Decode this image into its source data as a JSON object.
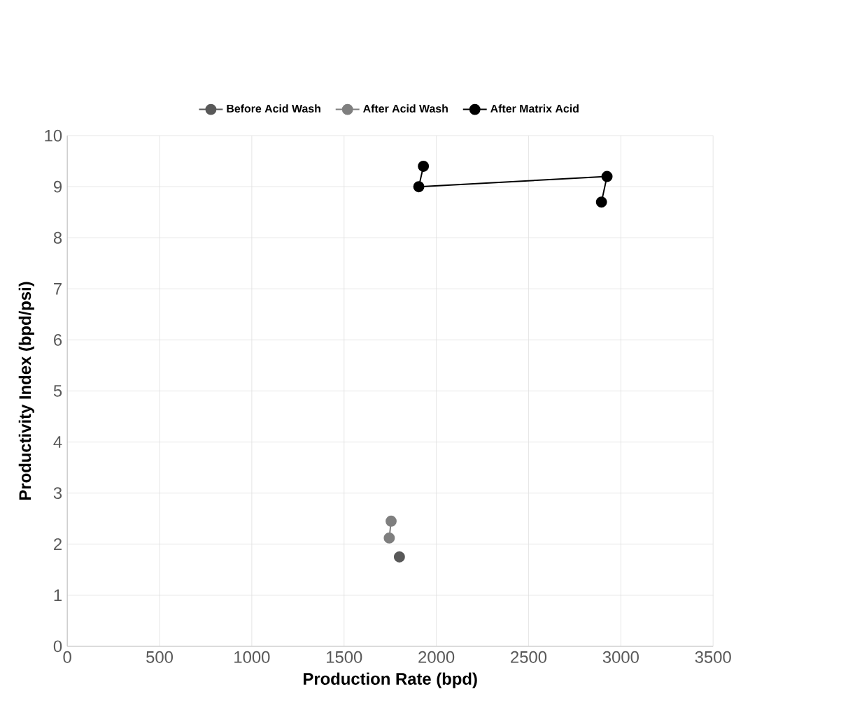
{
  "chart_data": {
    "type": "line",
    "xlabel": "Production Rate (bpd)",
    "ylabel": "Productivity Index (bpd/psi)",
    "xlim": [
      0,
      3500
    ],
    "xticks": [
      0,
      500,
      1000,
      1500,
      2000,
      2500,
      3000,
      3500
    ],
    "ylim": [
      0,
      10
    ],
    "yticks": [
      0,
      1,
      2,
      3,
      4,
      5,
      6,
      7,
      8,
      9,
      10
    ],
    "grid": true,
    "legend": "top",
    "marker": "circle",
    "series": [
      {
        "name": "Before Acid Wash",
        "color": "#595959",
        "x": [
          1800
        ],
        "values": [
          1.75
        ]
      },
      {
        "name": "After Acid Wash",
        "color": "#7f7f7f",
        "x": [
          1755,
          1745
        ],
        "values": [
          2.45,
          2.12
        ]
      },
      {
        "name": "After Matrix Acid",
        "color": "#000000",
        "x": [
          1930,
          1905,
          2925,
          2895
        ],
        "values": [
          9.4,
          9.0,
          9.2,
          8.7
        ]
      }
    ]
  }
}
